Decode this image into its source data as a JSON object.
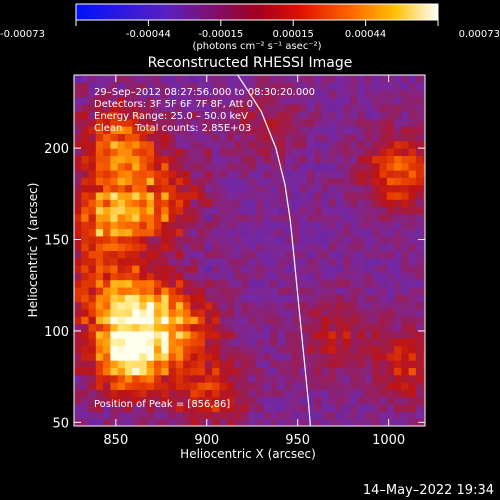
{
  "colorbar": {
    "ticks": [
      "-0.00073",
      "-0.00044",
      "-0.00015",
      "0.00015",
      "0.00044",
      "0.00073"
    ],
    "units": "(photons cm⁻² s⁻¹ asec⁻²)"
  },
  "footer": {
    "timestamp": "14–May–2022 19:34"
  },
  "chart_data": {
    "type": "heatmap",
    "title": "Reconstructed RHESSI Image",
    "xlabel": "Heliocentric X (arcsec)",
    "ylabel": "Heliocentric Y (arcsec)",
    "xlim": [
      827,
      1020
    ],
    "ylim": [
      48,
      240
    ],
    "xticks": [
      850,
      900,
      950,
      1000
    ],
    "yticks": [
      50,
      100,
      150,
      200
    ],
    "color_range": [
      -0.00073,
      0.00073
    ],
    "colormap": "blue-purple-red-orange-yellow-white",
    "annotations": [
      "29–Sep–2012 08:27:56.000 to 08:30:20.000",
      "Detectors: 3F 5F 6F 7F 8F, Att 0",
      "Energy Range: 25.0 – 50.0 keV",
      "Clean    Total counts: 2.85E+03",
      "Position of Peak = [856,86]"
    ],
    "peak": [
      856,
      86
    ],
    "limb_arc": [
      [
        917,
        240
      ],
      [
        930,
        220
      ],
      [
        938,
        200
      ],
      [
        943,
        180
      ],
      [
        946,
        160
      ],
      [
        948,
        140
      ],
      [
        950,
        120
      ],
      [
        952,
        100
      ],
      [
        954,
        80
      ],
      [
        956,
        60
      ],
      [
        957,
        48
      ]
    ],
    "hot_spots": [
      [
        856,
        86,
        1.0
      ],
      [
        862,
        110,
        0.6
      ],
      [
        845,
        160,
        0.7
      ],
      [
        850,
        200,
        0.6
      ],
      [
        873,
        170,
        0.45
      ],
      [
        838,
        120,
        0.4
      ],
      [
        885,
        100,
        0.45
      ],
      [
        900,
        65,
        0.35
      ],
      [
        1005,
        185,
        0.5
      ],
      [
        1010,
        80,
        0.35
      ],
      [
        968,
        95,
        0.25
      ],
      [
        930,
        210,
        0.2
      ]
    ]
  }
}
